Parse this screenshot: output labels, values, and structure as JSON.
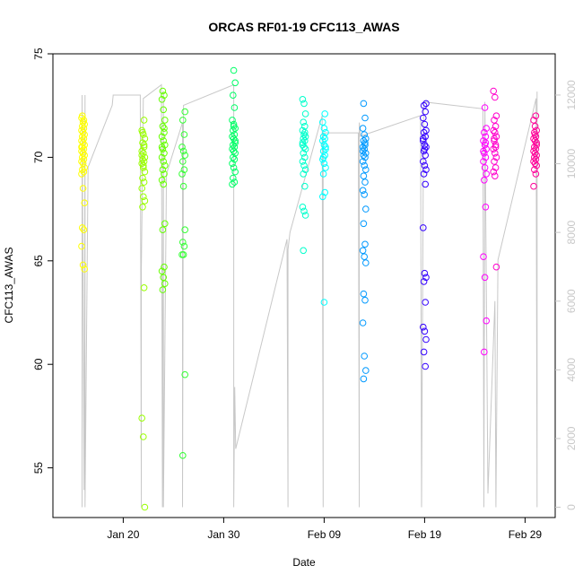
{
  "chart_data": {
    "type": "scatter",
    "title": "ORCAS RF01-19 CFC113_AWAS",
    "xlabel": "Date",
    "ylabel": "CFC113_AWAS",
    "xlim": [
      "2016-01-13",
      "2016-03-03"
    ],
    "ylim": [
      52.6,
      75.0
    ],
    "y2lim": [
      -300,
      13200
    ],
    "x_ticks": [
      {
        "label": "Jan 20",
        "date": "2016-01-20"
      },
      {
        "label": "Jan 30",
        "date": "2016-01-30"
      },
      {
        "label": "Feb 09",
        "date": "2016-02-09"
      },
      {
        "label": "Feb 19",
        "date": "2016-02-19"
      },
      {
        "label": "Feb 29",
        "date": "2016-02-29"
      }
    ],
    "y_ticks": [
      55,
      60,
      65,
      70,
      75
    ],
    "y2_ticks": [
      0,
      2000,
      4000,
      6000,
      8000,
      10000,
      12000
    ],
    "grid": false,
    "legend": "none",
    "altitude_series": {
      "color": "#c8c8c8",
      "path": [
        [
          "2016-01-15.9",
          9700
        ],
        [
          "2016-01-15.9",
          0
        ],
        [
          "2016-01-15.9",
          12000
        ],
        [
          "2016-01-16.1",
          500
        ],
        [
          "2016-01-16.2",
          12000
        ],
        [
          "2016-01-16.2",
          0
        ],
        [
          "2016-01-16.5",
          9900
        ],
        [
          "2016-01-18.9",
          11700
        ],
        [
          "2016-01-19.0",
          12000
        ],
        [
          "2016-01-21.7",
          12000
        ],
        [
          "2016-01-21.8",
          0
        ],
        [
          "2016-01-21.8",
          7000
        ],
        [
          "2016-01-22.0",
          11900
        ],
        [
          "2016-01-23.8",
          12300
        ],
        [
          "2016-01-23.9",
          0
        ],
        [
          "2016-01-24.0",
          12100
        ],
        [
          "2016-01-24.0",
          0
        ],
        [
          "2016-01-24.3",
          9700
        ],
        [
          "2016-01-25.9",
          11200
        ],
        [
          "2016-01-25.9",
          0
        ],
        [
          "2016-01-26.0",
          11700
        ],
        [
          "2016-01-31.0",
          12300
        ],
        [
          "2016-01-31.0",
          0
        ],
        [
          "2016-01-31.1",
          3500
        ],
        [
          "2016-01-31.2",
          1700
        ],
        [
          "2016-02-05.3",
          7800
        ],
        [
          "2016-02-05.4",
          0
        ],
        [
          "2016-02-05.4",
          7500
        ],
        [
          "2016-02-05.6",
          8000
        ],
        [
          "2016-02-08.8",
          11400
        ],
        [
          "2016-02-08.9",
          0
        ],
        [
          "2016-02-08.9",
          10900
        ],
        [
          "2016-02-12.4",
          10900
        ],
        [
          "2016-02-12.5",
          0
        ],
        [
          "2016-02-12.5",
          11200
        ],
        [
          "2016-02-12.6",
          10800
        ],
        [
          "2016-02-18.6",
          11400
        ],
        [
          "2016-02-18.7",
          0
        ],
        [
          "2016-02-18.9",
          11800
        ],
        [
          "2016-02-24.8",
          11600
        ],
        [
          "2016-02-24.9",
          0
        ],
        [
          "2016-02-25.0",
          11800
        ],
        [
          "2016-02-25.3",
          400
        ],
        [
          "2016-02-26.0",
          6000
        ],
        [
          "2016-02-26.1",
          0
        ],
        [
          "2016-02-26.3",
          7200
        ],
        [
          "2016-03-01.1",
          11900
        ],
        [
          "2016-03-01.2",
          0
        ],
        [
          "2016-03-01.2",
          12100
        ]
      ]
    },
    "flights": [
      {
        "date": "2016-01-16.0",
        "color": "#ffff00",
        "values": [
          71.9,
          71.7,
          71.6,
          71.5,
          71.4,
          71.3,
          71.2,
          71.1,
          71.0,
          70.9,
          70.8,
          70.7,
          70.6,
          70.5,
          70.4,
          70.3,
          70.2,
          70.1,
          70.0,
          69.9,
          69.8,
          69.7,
          69.5,
          69.4,
          69.3,
          69.2,
          68.5,
          67.8,
          66.6,
          66.5,
          65.7,
          64.8,
          64.6,
          72.0,
          71.8,
          70.5,
          70.2
        ]
      },
      {
        "date": "2016-01-22.0",
        "color": "#99ff00",
        "values": [
          71.8,
          71.3,
          71.1,
          70.9,
          70.7,
          70.5,
          70.3,
          70.2,
          70.0,
          69.9,
          69.8,
          69.7,
          69.5,
          69.3,
          69.0,
          68.8,
          68.5,
          68.1,
          67.9,
          67.6,
          63.7,
          57.4,
          56.5,
          53.1,
          71.2,
          70.6,
          70.1,
          69.6
        ]
      },
      {
        "date": "2016-01-24.0",
        "color": "#66ff00",
        "values": [
          73.2,
          73.0,
          72.8,
          72.3,
          71.8,
          71.5,
          71.2,
          71.0,
          70.8,
          70.6,
          70.4,
          70.2,
          70.0,
          69.8,
          69.6,
          69.4,
          69.2,
          68.9,
          68.7,
          66.8,
          66.5,
          64.7,
          64.5,
          64.2,
          63.9,
          63.6,
          71.4,
          70.5
        ]
      },
      {
        "date": "2016-01-26.0",
        "color": "#33ff33",
        "values": [
          72.2,
          71.8,
          71.1,
          70.5,
          70.3,
          70.1,
          69.8,
          69.4,
          69.2,
          68.6,
          66.5,
          65.9,
          65.7,
          65.3,
          65.3,
          59.5,
          55.6
        ]
      },
      {
        "date": "2016-01-31.0",
        "color": "#00ff66",
        "values": [
          74.2,
          73.6,
          73.0,
          72.4,
          71.8,
          71.6,
          71.4,
          71.3,
          71.1,
          71.0,
          70.9,
          70.8,
          70.6,
          70.5,
          70.4,
          70.3,
          70.2,
          70.0,
          69.9,
          69.7,
          69.5,
          69.3,
          69.0,
          68.8,
          68.7,
          71.5,
          70.7
        ]
      },
      {
        "date": "2016-02-07.0",
        "color": "#00ffcc",
        "values": [
          72.8,
          72.6,
          72.1,
          71.7,
          71.5,
          71.3,
          71.1,
          71.0,
          70.9,
          70.8,
          70.6,
          70.5,
          70.4,
          70.2,
          70.0,
          69.8,
          69.6,
          69.4,
          69.2,
          68.6,
          67.6,
          67.4,
          67.2,
          65.5,
          71.2,
          70.7
        ]
      },
      {
        "date": "2016-02-09.0",
        "color": "#00ffff",
        "values": [
          72.1,
          71.7,
          71.4,
          71.2,
          71.0,
          70.9,
          70.8,
          70.6,
          70.5,
          70.3,
          70.1,
          69.9,
          69.7,
          69.5,
          69.2,
          68.3,
          68.1,
          63.0,
          70.4,
          70.0
        ]
      },
      {
        "date": "2016-02-13.0",
        "color": "#0099ff",
        "values": [
          72.6,
          71.9,
          71.4,
          71.1,
          70.9,
          70.8,
          70.6,
          70.5,
          70.4,
          70.2,
          70.1,
          70.0,
          69.8,
          69.6,
          69.4,
          69.1,
          68.8,
          68.4,
          68.2,
          67.5,
          66.8,
          65.8,
          65.5,
          65.2,
          64.9,
          63.4,
          63.1,
          62.0,
          60.4,
          59.7,
          59.3,
          70.7,
          70.3
        ]
      },
      {
        "date": "2016-02-19.0",
        "color": "#3300ff",
        "values": [
          72.6,
          72.5,
          72.2,
          71.9,
          71.6,
          71.3,
          71.2,
          71.0,
          70.8,
          70.6,
          70.5,
          70.3,
          70.1,
          69.8,
          69.6,
          69.4,
          69.2,
          68.7,
          66.6,
          64.4,
          64.2,
          64.0,
          63.0,
          61.8,
          61.6,
          61.2,
          60.6,
          59.9,
          70.9,
          70.4
        ]
      },
      {
        "date": "2016-02-25.0",
        "color": "#ff00ff",
        "values": [
          72.4,
          71.4,
          71.2,
          71.0,
          70.8,
          70.6,
          70.4,
          70.2,
          70.0,
          69.8,
          69.5,
          69.2,
          68.9,
          67.6,
          65.2,
          64.2,
          62.1,
          60.6,
          70.7,
          70.3
        ]
      },
      {
        "date": "2016-02-26.0",
        "color": "#ff00cc",
        "values": [
          73.2,
          72.9,
          72.0,
          71.8,
          71.5,
          71.3,
          71.2,
          71.0,
          70.8,
          70.6,
          70.4,
          70.2,
          70.0,
          69.8,
          69.5,
          69.3,
          69.1,
          64.7,
          70.9,
          70.5
        ]
      },
      {
        "date": "2016-03-01.0",
        "color": "#ff0099",
        "values": [
          72.0,
          71.8,
          71.5,
          71.3,
          71.2,
          71.0,
          70.9,
          70.8,
          70.7,
          70.5,
          70.4,
          70.3,
          70.2,
          70.1,
          70.0,
          69.9,
          69.8,
          69.7,
          69.6,
          69.4,
          69.2,
          68.6,
          71.1,
          70.6
        ]
      }
    ]
  }
}
